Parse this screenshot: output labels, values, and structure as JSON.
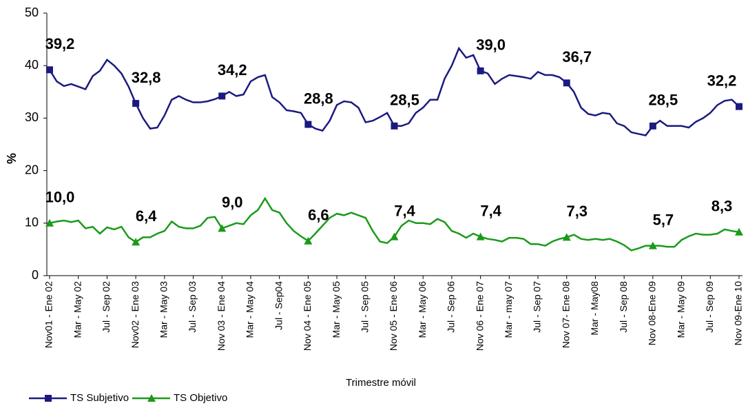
{
  "chart_data": {
    "type": "line",
    "y_label": "%",
    "x_label": "Trimestre móvil",
    "categories": [
      "Nov01 - Ene 02",
      null,
      null,
      null,
      "Mar - May 02",
      null,
      null,
      null,
      "Jul - Sep 02",
      null,
      null,
      null,
      "Nov02 - Ene 03",
      null,
      null,
      null,
      "Mar - May 03",
      null,
      null,
      null,
      "Jul - Sep 03",
      null,
      null,
      null,
      "Nov 03 - Ene 04",
      null,
      null,
      null,
      "Mar - May 04",
      null,
      null,
      null,
      "Jul - Sep04",
      null,
      null,
      null,
      "Nov 04 - Ene 05",
      null,
      null,
      null,
      "Mar - May 05",
      null,
      null,
      null,
      "Jul - Sep 05",
      null,
      null,
      null,
      "Nov 05 - Ene 06",
      null,
      null,
      null,
      "Mar - May 06",
      null,
      null,
      null,
      "Jul - Sep 06",
      null,
      null,
      null,
      "Nov 06 - Ene 07",
      null,
      null,
      null,
      "Mar - may 07",
      null,
      null,
      null,
      "Jul - Sep 07",
      null,
      null,
      null,
      "Nov 07- Ene 08",
      null,
      null,
      null,
      "Mar - May08",
      null,
      null,
      null,
      "Jul - Sep 08",
      null,
      null,
      null,
      "Nov 08-Ene 09",
      null,
      null,
      null,
      "Mar - May 09",
      null,
      null,
      null,
      "Jul - Sep 09",
      null,
      null,
      null,
      "Nov 09-Ene 10"
    ],
    "series": [
      {
        "name": "TS Subjetivo",
        "color": "#1a1a80",
        "marker": "square",
        "values": [
          39.2,
          37,
          36.1,
          36.5,
          36,
          35.5,
          38,
          39,
          41.1,
          40,
          38.5,
          36,
          32.8,
          30,
          28,
          28.2,
          30.5,
          33.5,
          34.2,
          33.5,
          33,
          33,
          33.2,
          33.6,
          34.2,
          35,
          34.2,
          34.5,
          37,
          37.8,
          38.2,
          34,
          33,
          31.5,
          31.3,
          31,
          28.8,
          28,
          27.6,
          29.5,
          32.5,
          33.2,
          33,
          32,
          29.2,
          29.5,
          30.2,
          31,
          28.5,
          28.5,
          29,
          31,
          32,
          33.5,
          33.5,
          37.5,
          40,
          43.3,
          41.5,
          42,
          39,
          38.5,
          36.5,
          37.5,
          38.2,
          38,
          37.8,
          37.5,
          38.8,
          38.2,
          38.2,
          37.8,
          36.7,
          35,
          32,
          30.8,
          30.5,
          31,
          30.8,
          29,
          28.5,
          27.3,
          27,
          26.7,
          28.5,
          29.5,
          28.5,
          28.5,
          28.5,
          28.2,
          29.3,
          30,
          31,
          32.5,
          33.3,
          33.5,
          32.2
        ],
        "value_labels": [
          "39,2",
          null,
          null,
          null,
          null,
          null,
          null,
          null,
          null,
          null,
          null,
          null,
          "32,8",
          null,
          null,
          null,
          null,
          null,
          null,
          null,
          null,
          null,
          null,
          null,
          "34,2",
          null,
          null,
          null,
          null,
          null,
          null,
          null,
          null,
          null,
          null,
          null,
          "28,8",
          null,
          null,
          null,
          null,
          null,
          null,
          null,
          null,
          null,
          null,
          null,
          "28,5",
          null,
          null,
          null,
          null,
          null,
          null,
          null,
          null,
          null,
          null,
          null,
          "39,0",
          null,
          null,
          null,
          null,
          null,
          null,
          null,
          null,
          null,
          null,
          null,
          "36,7",
          null,
          null,
          null,
          null,
          null,
          null,
          null,
          null,
          null,
          null,
          null,
          "28,5",
          null,
          null,
          null,
          null,
          null,
          null,
          null,
          null,
          null,
          null,
          null,
          "32,2"
        ]
      },
      {
        "name": "TS Objetivo",
        "color": "#1a9a1a",
        "marker": "triangle",
        "values": [
          10,
          10.3,
          10.5,
          10.2,
          10.5,
          9,
          9.3,
          8,
          9.2,
          8.8,
          9.3,
          7.3,
          6.4,
          7.3,
          7.3,
          8,
          8.5,
          10.3,
          9.3,
          9,
          9,
          9.5,
          11,
          11.2,
          9,
          9.5,
          10,
          9.8,
          11.5,
          12.5,
          14.7,
          12.5,
          12,
          10,
          8.5,
          7.5,
          6.6,
          8,
          9.5,
          11,
          11.8,
          11.5,
          12,
          11.5,
          11,
          8.5,
          6.5,
          6.2,
          7.4,
          9.5,
          10.5,
          10,
          10,
          9.8,
          10.8,
          10.2,
          8.5,
          8,
          7.2,
          8,
          7.4,
          7,
          6.8,
          6.5,
          7.2,
          7.2,
          7,
          6,
          6,
          5.7,
          6.5,
          7,
          7.3,
          7.8,
          7,
          6.8,
          7,
          6.8,
          7,
          6.5,
          5.8,
          4.8,
          5.2,
          5.7,
          5.7,
          5.7,
          5.5,
          5.5,
          6.8,
          7.5,
          8,
          7.8,
          7.8,
          8,
          8.8,
          8.5,
          8.3
        ],
        "value_labels": [
          "10,0",
          null,
          null,
          null,
          null,
          null,
          null,
          null,
          null,
          null,
          null,
          null,
          "6,4",
          null,
          null,
          null,
          null,
          null,
          null,
          null,
          null,
          null,
          null,
          null,
          "9,0",
          null,
          null,
          null,
          null,
          null,
          null,
          null,
          null,
          null,
          null,
          null,
          "6,6",
          null,
          null,
          null,
          null,
          null,
          null,
          null,
          null,
          null,
          null,
          null,
          "7,4",
          null,
          null,
          null,
          null,
          null,
          null,
          null,
          null,
          null,
          null,
          null,
          "7,4",
          null,
          null,
          null,
          null,
          null,
          null,
          null,
          null,
          null,
          null,
          null,
          "7,3",
          null,
          null,
          null,
          null,
          null,
          null,
          null,
          null,
          null,
          null,
          null,
          "5,7",
          null,
          null,
          null,
          null,
          null,
          null,
          null,
          null,
          null,
          null,
          null,
          "8,3"
        ]
      }
    ],
    "ylim": [
      0,
      50
    ],
    "yticks": [
      0,
      10,
      20,
      30,
      40,
      50
    ],
    "grid": false
  }
}
